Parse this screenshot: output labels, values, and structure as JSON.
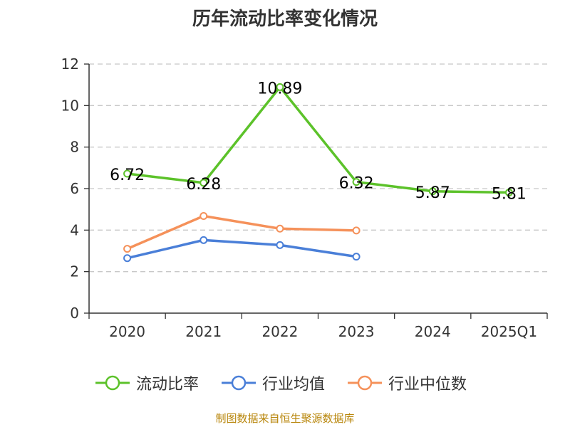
{
  "title": "历年流动比率变化情况",
  "source": "制图数据来自恒生聚源数据库",
  "chart_data": {
    "type": "line",
    "title": "历年流动比率变化情况",
    "categories": [
      "2020",
      "2021",
      "2022",
      "2023",
      "2024",
      "2025Q1"
    ],
    "ylim": [
      0,
      12
    ],
    "yticks": [
      "0",
      "2",
      "4",
      "6",
      "8",
      "10",
      "12"
    ],
    "grid": true,
    "legend_position": "bottom",
    "series": [
      {
        "name": "流动比率",
        "color": "#5cc22a",
        "values": [
          6.72,
          6.28,
          10.89,
          6.32,
          5.87,
          5.81
        ],
        "labels": [
          "6.72",
          "6.28",
          "10.89",
          "6.32",
          "5.87",
          "5.81"
        ]
      },
      {
        "name": "行业均值",
        "color": "#4a7fd8",
        "values": [
          2.65,
          3.52,
          3.28,
          2.72,
          null,
          null
        ]
      },
      {
        "name": "行业中位数",
        "color": "#f5915a",
        "values": [
          3.1,
          4.68,
          4.07,
          3.98,
          null,
          null
        ]
      }
    ]
  }
}
